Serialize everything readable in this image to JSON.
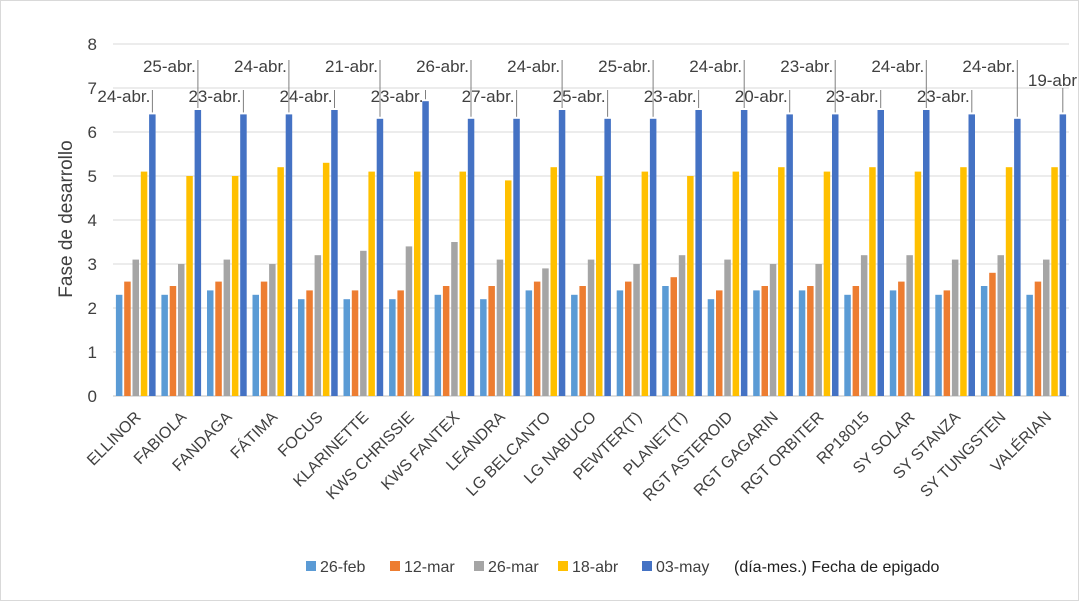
{
  "chart_data": {
    "type": "bar",
    "title": "",
    "xlabel": "",
    "ylabel": "Fase de desarrollo",
    "ylim": [
      0,
      8
    ],
    "yticks": [
      0,
      1,
      2,
      3,
      4,
      5,
      6,
      7,
      8
    ],
    "grid": true,
    "legend_position": "bottom",
    "categories": [
      "ELLINOR",
      "FABIOLA",
      "FANDAGA",
      "FÁTIMA",
      "FOCUS",
      "KLARINETTE",
      "KWS CHRISSIE",
      "KWS FANTEX",
      "LEANDRA",
      "LG BELCANTO",
      "LG NABUCO",
      "PEWTER(T)",
      "PLANET(T)",
      "RGT ASTEROID",
      "RGT GAGARIN",
      "RGT ORBITER",
      "RP18015",
      "SY SOLAR",
      "SY STANZA",
      "SY TUNGSTEN",
      "VALÉRIAN"
    ],
    "series": [
      {
        "name": "26-feb",
        "color": "#5B9BD5",
        "values": [
          2.3,
          2.3,
          2.4,
          2.3,
          2.2,
          2.2,
          2.2,
          2.3,
          2.2,
          2.4,
          2.3,
          2.4,
          2.5,
          2.2,
          2.4,
          2.4,
          2.3,
          2.4,
          2.3,
          2.5,
          2.3
        ]
      },
      {
        "name": "12-mar",
        "color": "#ED7D31",
        "values": [
          2.6,
          2.5,
          2.6,
          2.6,
          2.4,
          2.4,
          2.4,
          2.5,
          2.5,
          2.6,
          2.5,
          2.6,
          2.7,
          2.4,
          2.5,
          2.5,
          2.5,
          2.6,
          2.4,
          2.8,
          2.6
        ]
      },
      {
        "name": "26-mar",
        "color": "#A5A5A5",
        "values": [
          3.1,
          3.0,
          3.1,
          3.0,
          3.2,
          3.3,
          3.4,
          3.5,
          3.1,
          2.9,
          3.1,
          3.0,
          3.2,
          3.1,
          3.0,
          3.0,
          3.2,
          3.2,
          3.1,
          3.2,
          3.1
        ]
      },
      {
        "name": "18-abr",
        "color": "#FFC000",
        "values": [
          5.1,
          5.0,
          5.0,
          5.2,
          5.3,
          5.1,
          5.1,
          5.1,
          4.9,
          5.2,
          5.0,
          5.1,
          5.0,
          5.1,
          5.2,
          5.1,
          5.2,
          5.1,
          5.2,
          5.2,
          5.2
        ]
      },
      {
        "name": "03-may",
        "color": "#4472C4",
        "values": [
          6.4,
          6.5,
          6.4,
          6.4,
          6.5,
          6.3,
          6.7,
          6.3,
          6.3,
          6.5,
          6.3,
          6.3,
          6.5,
          6.5,
          6.4,
          6.4,
          6.5,
          6.5,
          6.4,
          6.3,
          6.4
        ]
      }
    ],
    "annotations": [
      "24-abr.",
      "25-abr.",
      "23-abr.",
      "24-abr.",
      "24-abr.",
      "21-abr.",
      "23-abr.",
      "26-abr.",
      "27-abr.",
      "24-abr.",
      "25-abr.",
      "25-abr.",
      "23-abr.",
      "24-abr.",
      "20-abr.",
      "23-abr.",
      "23-abr.",
      "24-abr.",
      "23-abr.",
      "24-abr.",
      "19-abr"
    ],
    "legend_note": "(día-mes.) Fecha de epigado"
  }
}
